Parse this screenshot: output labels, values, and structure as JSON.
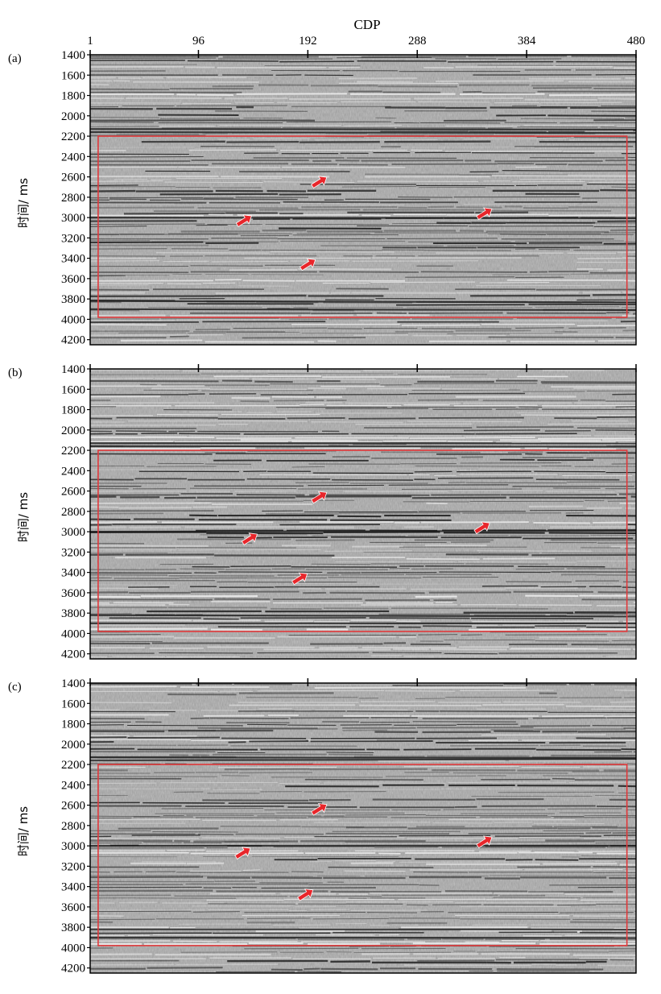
{
  "figure": {
    "x_axis_title": "CDP",
    "x_ticks": [
      "1",
      "96",
      "192",
      "288",
      "384",
      "480"
    ],
    "y_ticks": [
      "1400",
      "1600",
      "1800",
      "2000",
      "2200",
      "2400",
      "2600",
      "2800",
      "3000",
      "3200",
      "3400",
      "3600",
      "3800",
      "4000",
      "4200"
    ],
    "y_axis_title": "时间/ ms",
    "colors": {
      "box": "#e0393b",
      "arrow": "#e8262b",
      "trace_dark": "#111111",
      "background": "#a8a8a8"
    }
  },
  "panels": [
    {
      "tag": "(a)",
      "box": {
        "cdp_from": 8,
        "cdp_to": 472,
        "time_from_ms": 2200,
        "time_to_ms": 3980
      },
      "arrows_cdp_ms": [
        [
          202,
          2650
        ],
        [
          136,
          3030
        ],
        [
          192,
          3460
        ],
        [
          347,
          2960
        ]
      ]
    },
    {
      "tag": "(b)",
      "box": {
        "cdp_from": 8,
        "cdp_to": 472,
        "time_from_ms": 2200,
        "time_to_ms": 3980
      },
      "arrows_cdp_ms": [
        [
          202,
          2660
        ],
        [
          141,
          3070
        ],
        [
          185,
          3460
        ],
        [
          345,
          2960
        ]
      ]
    },
    {
      "tag": "(c)",
      "box": {
        "cdp_from": 8,
        "cdp_to": 472,
        "time_from_ms": 2200,
        "time_to_ms": 3980
      },
      "arrows_cdp_ms": [
        [
          202,
          2640
        ],
        [
          135,
          3070
        ],
        [
          190,
          3480
        ],
        [
          347,
          2960
        ]
      ]
    }
  ]
}
